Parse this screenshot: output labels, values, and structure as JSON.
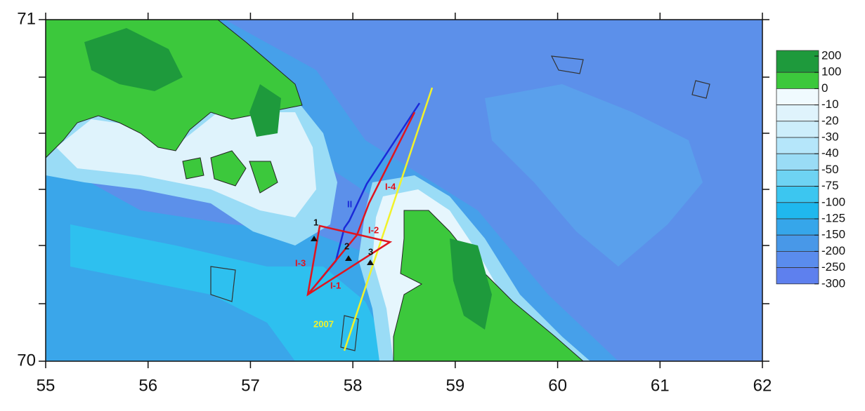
{
  "map": {
    "xlim": [
      55,
      62
    ],
    "ylim": [
      70,
      71
    ],
    "xticks": [
      55,
      56,
      57,
      58,
      59,
      60,
      61,
      62
    ],
    "yticks": [
      70,
      71
    ],
    "legend": {
      "labels": [
        200,
        100,
        0,
        -10,
        -20,
        -30,
        -40,
        -50,
        -75,
        -100,
        -125,
        -150,
        -200,
        -250,
        -300
      ],
      "colors": [
        "#1e9a3c",
        "#3cc83c",
        "#f0fafe",
        "#dff3fc",
        "#cdeefb",
        "#b5e6fa",
        "#9adcf6",
        "#6ed3f3",
        "#3cc6f0",
        "#1fb8ee",
        "#36a6ea",
        "#4898e8",
        "#5a8ced",
        "#5e80ee"
      ]
    },
    "annotations": {
      "point_1": "1",
      "point_2": "2",
      "point_3": "3",
      "i1": "I-1",
      "i2": "I-2",
      "i3": "I-3",
      "i4": "I-4",
      "ii": "II",
      "y2007": "2007"
    }
  }
}
